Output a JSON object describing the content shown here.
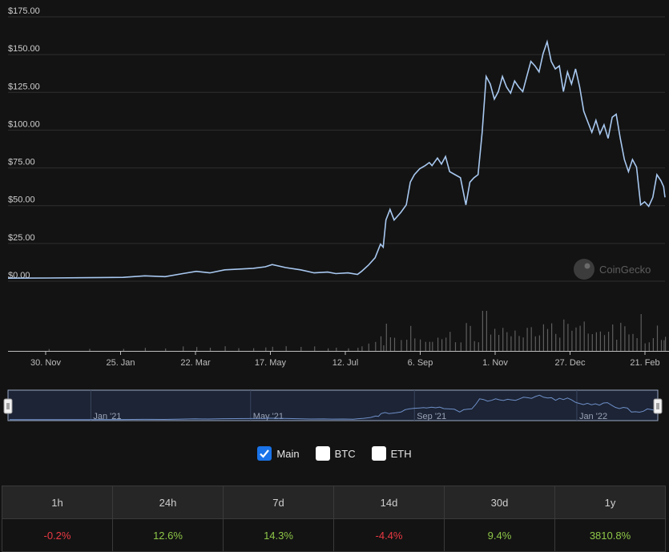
{
  "colors": {
    "line": "#a8c8f0",
    "grid": "#2f2f2f",
    "volume": "#5e5e5e",
    "positive": "#8dc647",
    "negative": "#ea3943"
  },
  "watermark": "CoinGecko",
  "legend": [
    {
      "label": "Main",
      "checked": true
    },
    {
      "label": "BTC",
      "checked": false
    },
    {
      "label": "ETH",
      "checked": false
    }
  ],
  "stats": {
    "headers": [
      "1h",
      "24h",
      "7d",
      "14d",
      "30d",
      "1y"
    ],
    "values": [
      "-0.2%",
      "12.6%",
      "14.3%",
      "-4.4%",
      "9.4%",
      "3810.8%"
    ]
  },
  "chart_data": {
    "type": "line",
    "x_tick_labels": [
      "30. Nov",
      "25. Jan",
      "22. Mar",
      "17. May",
      "12. Jul",
      "6. Sep",
      "1. Nov",
      "27. Dec",
      "21. Feb"
    ],
    "y_tick_labels": [
      "$0.00",
      "$25.00",
      "$50.00",
      "$75.00",
      "$100.00",
      "$125.00",
      "$150.00",
      "$175.00"
    ],
    "ylim": [
      0,
      175
    ],
    "grid": true,
    "x_start": "2020-11-01",
    "x_end": "2022-03-01",
    "series": [
      {
        "values": [
          [
            "2020-11-01",
            1.5
          ],
          [
            "2020-12-01",
            1.6
          ],
          [
            "2020-12-31",
            1.8
          ],
          [
            "2021-01-25",
            2.0
          ],
          [
            "2021-02-10",
            3.0
          ],
          [
            "2021-02-25",
            2.5
          ],
          [
            "2021-03-10",
            4.5
          ],
          [
            "2021-03-20",
            6.0
          ],
          [
            "2021-03-30",
            5.0
          ],
          [
            "2021-04-10",
            7.0
          ],
          [
            "2021-04-20",
            7.5
          ],
          [
            "2021-05-01",
            8.0
          ],
          [
            "2021-05-10",
            9.0
          ],
          [
            "2021-05-15",
            10.5
          ],
          [
            "2021-05-25",
            8.5
          ],
          [
            "2021-06-05",
            7.0
          ],
          [
            "2021-06-15",
            5.0
          ],
          [
            "2021-06-25",
            5.5
          ],
          [
            "2021-07-01",
            4.5
          ],
          [
            "2021-07-10",
            5.0
          ],
          [
            "2021-07-17",
            4.0
          ],
          [
            "2021-07-20",
            6.0
          ],
          [
            "2021-07-25",
            10.0
          ],
          [
            "2021-07-30",
            15.0
          ],
          [
            "2021-08-03",
            24.0
          ],
          [
            "2021-08-05",
            22.0
          ],
          [
            "2021-08-07",
            40.0
          ],
          [
            "2021-08-10",
            47.0
          ],
          [
            "2021-08-13",
            40.0
          ],
          [
            "2021-08-18",
            45.0
          ],
          [
            "2021-08-22",
            50.0
          ],
          [
            "2021-08-25",
            65.0
          ],
          [
            "2021-08-28",
            70.0
          ],
          [
            "2021-09-01",
            74.0
          ],
          [
            "2021-09-05",
            76.0
          ],
          [
            "2021-09-08",
            78.0
          ],
          [
            "2021-09-10",
            76.0
          ],
          [
            "2021-09-14",
            81.0
          ],
          [
            "2021-09-17",
            77.0
          ],
          [
            "2021-09-20",
            82.0
          ],
          [
            "2021-09-23",
            72.0
          ],
          [
            "2021-09-27",
            70.0
          ],
          [
            "2021-10-01",
            68.0
          ],
          [
            "2021-10-05",
            50.0
          ],
          [
            "2021-10-08",
            65.0
          ],
          [
            "2021-10-11",
            68.0
          ],
          [
            "2021-10-14",
            70.0
          ],
          [
            "2021-10-17",
            98.0
          ],
          [
            "2021-10-20",
            135.0
          ],
          [
            "2021-10-23",
            130.0
          ],
          [
            "2021-10-26",
            120.0
          ],
          [
            "2021-10-29",
            125.0
          ],
          [
            "2021-11-01",
            135.0
          ],
          [
            "2021-11-04",
            128.0
          ],
          [
            "2021-11-07",
            124.0
          ],
          [
            "2021-11-10",
            132.0
          ],
          [
            "2021-11-13",
            128.0
          ],
          [
            "2021-11-16",
            125.0
          ],
          [
            "2021-11-19",
            135.0
          ],
          [
            "2021-11-22",
            145.0
          ],
          [
            "2021-11-25",
            142.0
          ],
          [
            "2021-11-28",
            138.0
          ],
          [
            "2021-12-01",
            150.0
          ],
          [
            "2021-12-04",
            158.0
          ],
          [
            "2021-12-07",
            145.0
          ],
          [
            "2021-12-10",
            140.0
          ],
          [
            "2021-12-13",
            142.0
          ],
          [
            "2021-12-16",
            125.0
          ],
          [
            "2021-12-19",
            138.0
          ],
          [
            "2021-12-22",
            130.0
          ],
          [
            "2021-12-25",
            140.0
          ],
          [
            "2021-12-28",
            128.0
          ],
          [
            "2021-12-31",
            112.0
          ],
          [
            "2022-01-03",
            105.0
          ],
          [
            "2022-01-06",
            98.0
          ],
          [
            "2022-01-09",
            106.0
          ],
          [
            "2022-01-12",
            97.0
          ],
          [
            "2022-01-15",
            103.0
          ],
          [
            "2022-01-18",
            94.0
          ],
          [
            "2022-01-21",
            108.0
          ],
          [
            "2022-01-24",
            110.0
          ],
          [
            "2022-01-27",
            94.0
          ],
          [
            "2022-01-30",
            80.0
          ],
          [
            "2022-02-02",
            72.0
          ],
          [
            "2022-02-05",
            80.0
          ],
          [
            "2022-02-08",
            75.0
          ],
          [
            "2022-02-11",
            50.0
          ],
          [
            "2022-02-14",
            52.0
          ],
          [
            "2022-02-17",
            49.0
          ],
          [
            "2022-02-20",
            55.0
          ],
          [
            "2022-02-23",
            70.0
          ],
          [
            "2022-02-26",
            66.0
          ],
          [
            "2022-02-28",
            62.0
          ],
          [
            "2022-03-01",
            55.0
          ]
        ]
      }
    ]
  }
}
